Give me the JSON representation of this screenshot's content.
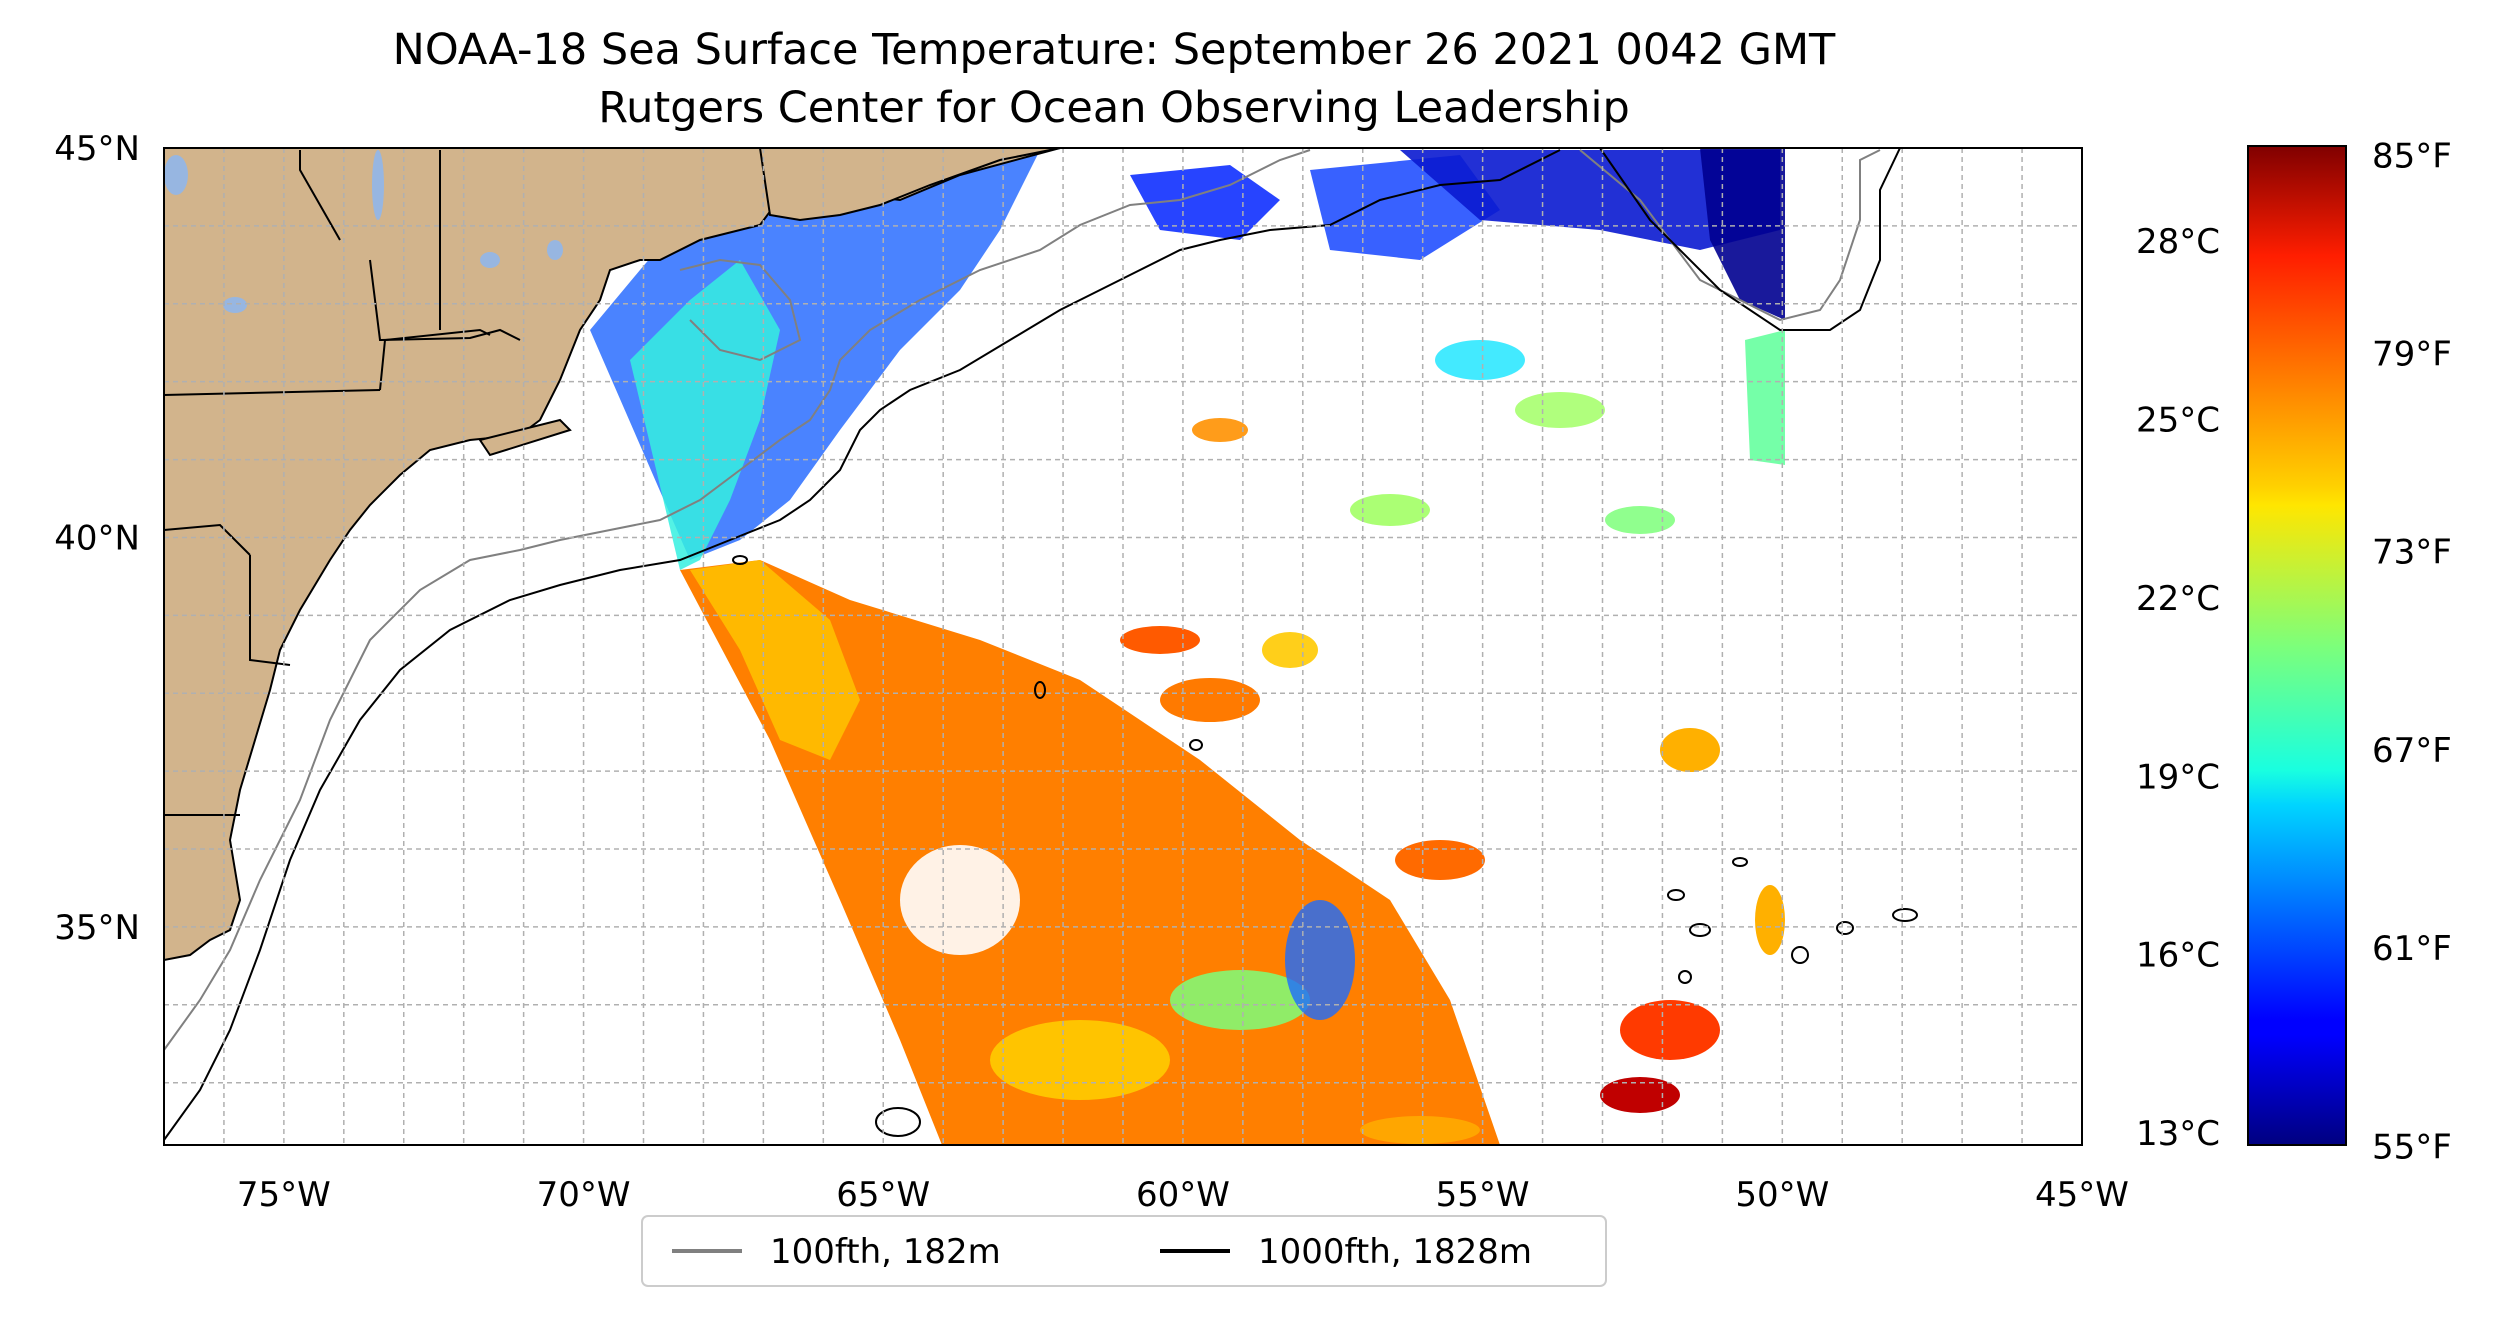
{
  "title_line1": "NOAA-18 Sea Surface Temperature: September 26 2021 0042 GMT",
  "title_line2": "Rutgers Center for Ocean Observing Leadership",
  "map": {
    "lon_ticks": [
      {
        "value": -75,
        "label": "75°W"
      },
      {
        "value": -70,
        "label": "70°W"
      },
      {
        "value": -65,
        "label": "65°W"
      },
      {
        "value": -60,
        "label": "60°W"
      },
      {
        "value": -55,
        "label": "55°W"
      },
      {
        "value": -50,
        "label": "50°W"
      },
      {
        "value": -45,
        "label": "45°W"
      }
    ],
    "lat_ticks": [
      {
        "value": 45,
        "label": "45°N"
      },
      {
        "value": 40,
        "label": "40°N"
      },
      {
        "value": 35,
        "label": "35°N"
      }
    ],
    "extent": {
      "lon_min": -77,
      "lon_max": -45,
      "lat_min": 32.2,
      "lat_max": 45
    },
    "grid": true,
    "land_color": "#d2b48c",
    "lake_color": "#97b6e1"
  },
  "legend": {
    "items": [
      {
        "label": "100fth, 182m",
        "color": "#808080"
      },
      {
        "label": "1000fth, 1828m",
        "color": "#000000"
      }
    ]
  },
  "colorbar": {
    "colormap": "jet",
    "celsius_min": 12.8,
    "celsius_max": 29.6,
    "celsius_ticks": [
      {
        "value": 13,
        "label": "13°C"
      },
      {
        "value": 16,
        "label": "16°C"
      },
      {
        "value": 19,
        "label": "19°C"
      },
      {
        "value": 22,
        "label": "22°C"
      },
      {
        "value": 25,
        "label": "25°C"
      },
      {
        "value": 28,
        "label": "28°C"
      }
    ],
    "fahrenheit_ticks": [
      {
        "value": 55,
        "label": "55°F"
      },
      {
        "value": 61,
        "label": "61°F"
      },
      {
        "value": 67,
        "label": "67°F"
      },
      {
        "value": 73,
        "label": "73°F"
      },
      {
        "value": 79,
        "label": "79°F"
      },
      {
        "value": 85,
        "label": "85°F"
      }
    ]
  }
}
